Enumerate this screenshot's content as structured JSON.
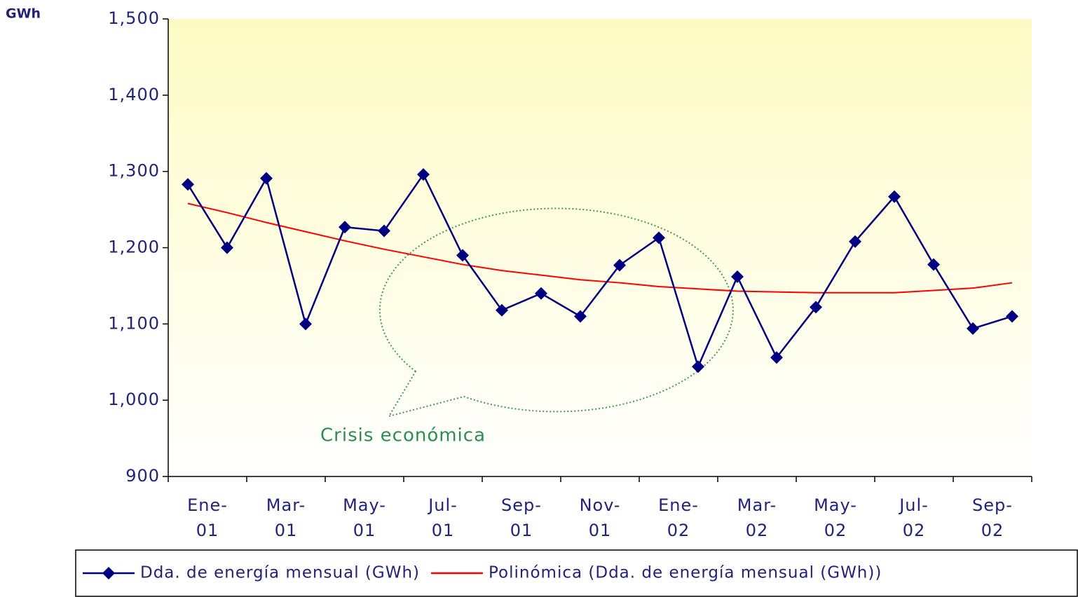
{
  "chart_data": {
    "type": "line",
    "y_label": "GWh",
    "annotation": "Crisis económica",
    "categories": [
      "Ene-01",
      null,
      "Mar-01",
      null,
      "May-01",
      null,
      "Jul-01",
      null,
      "Sep-01",
      null,
      "Nov-01",
      null,
      "Ene-02",
      null,
      "Mar-02",
      null,
      "May-02",
      null,
      "Jul-02",
      null,
      "Sep-02",
      null
    ],
    "series": [
      {
        "name": "Dda. de energía mensual (GWh)",
        "color": "#000080",
        "marker": "diamond",
        "values": [
          1283,
          1200,
          1291,
          1100,
          1227,
          1222,
          1296,
          1190,
          1118,
          1140,
          1110,
          1177,
          1213,
          1044,
          1162,
          1056,
          1122,
          1208,
          1267,
          1178,
          1094,
          1110
        ]
      },
      {
        "name": "Polinómica (Dda. de energía mensual (GWh))",
        "color": "#ff0000",
        "values": [
          1258,
          1246,
          1233,
          1221,
          1209,
          1198,
          1188,
          1178,
          1170,
          1164,
          1158,
          1154,
          1149,
          1146,
          1143,
          1142,
          1141,
          1141,
          1141,
          1144,
          1147,
          1154
        ]
      }
    ],
    "ylim": [
      900,
      1500
    ],
    "yticks": [
      900,
      {
        "value": 1000,
        "label": "1,000"
      },
      {
        "value": 1100,
        "label": "1,100"
      },
      {
        "value": 1200,
        "label": "1,200"
      },
      {
        "value": 1300,
        "label": "1,300"
      },
      {
        "value": 1400,
        "label": "1,400"
      },
      {
        "value": 1500,
        "label": "1,500"
      }
    ],
    "legend": "bottom"
  }
}
